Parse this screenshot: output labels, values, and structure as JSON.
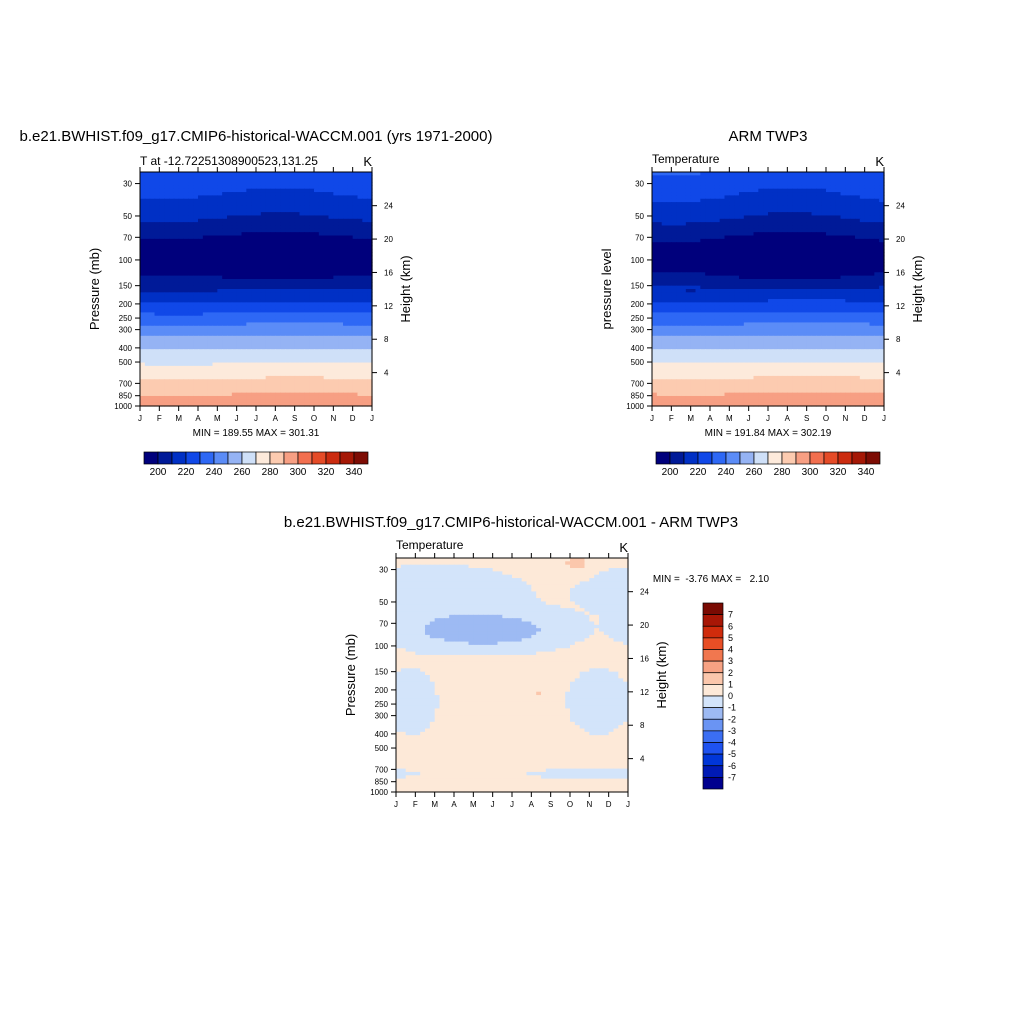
{
  "colors": {
    "abs_scale": [
      "#00007c",
      "#001a98",
      "#0030c5",
      "#1048e8",
      "#2e68f5",
      "#5b8cf7",
      "#95b3f4",
      "#cfe0f8",
      "#fdeadb",
      "#fccbb0",
      "#f79f83",
      "#f26f4f",
      "#e54b27",
      "#cb2b0f",
      "#a51806",
      "#7d0c04"
    ],
    "diff_scale": [
      "#00008e",
      "#001ab5",
      "#0036d8",
      "#1e52f0",
      "#3b6ef3",
      "#6a94f3",
      "#9dbaf3",
      "#d3e4fa",
      "#fde9d8",
      "#fbc7ac",
      "#f7a283",
      "#f1774f",
      "#e84e25",
      "#d02c0c",
      "#a81706",
      "#7a0b03"
    ]
  },
  "chart_data": [
    {
      "type": "heatmap",
      "title": "b.e21.BWHIST.f09_g17.CMIP6-historical-WACCM.001 (yrs 1971-2000)",
      "left_string": "T at -12.72251308900523,131.25",
      "right_string": "K",
      "xlabel": "",
      "ylabel": "Pressure (mb)",
      "ylabel_right": "Height (km)",
      "x_ticks": [
        "J",
        "F",
        "M",
        "A",
        "M",
        "J",
        "J",
        "A",
        "S",
        "O",
        "N",
        "D",
        "J"
      ],
      "y_ticks": [
        "30",
        "50",
        "70",
        "100",
        "150",
        "200",
        "250",
        "300",
        "400",
        "500",
        "700",
        "850",
        "1000"
      ],
      "y_ticks_right": [
        "24",
        "20",
        "16",
        "12",
        "8",
        "4"
      ],
      "ylim_mb": [
        1000,
        25
      ],
      "stats": "MIN = 189.55 MAX = 301.31",
      "min": 189.55,
      "max": 301.31,
      "colorbar_labels": [
        "200",
        "220",
        "240",
        "260",
        "280",
        "300",
        "320",
        "340"
      ],
      "colorbar_range": [
        190,
        350
      ],
      "colorbar_step": 10
    },
    {
      "type": "heatmap",
      "title": "ARM TWP3",
      "left_string": "Temperature",
      "right_string": "K",
      "xlabel": "",
      "ylabel": "pressure level",
      "ylabel_right": "Height (km)",
      "x_ticks": [
        "J",
        "F",
        "M",
        "A",
        "M",
        "J",
        "J",
        "A",
        "S",
        "O",
        "N",
        "D",
        "J"
      ],
      "y_ticks": [
        "30",
        "50",
        "70",
        "100",
        "150",
        "200",
        "250",
        "300",
        "400",
        "500",
        "700",
        "850",
        "1000"
      ],
      "y_ticks_right": [
        "24",
        "20",
        "16",
        "12",
        "8",
        "4"
      ],
      "ylim_mb": [
        1000,
        25
      ],
      "stats": "MIN = 191.84 MAX = 302.19",
      "min": 191.84,
      "max": 302.19,
      "colorbar_labels": [
        "200",
        "220",
        "240",
        "260",
        "280",
        "300",
        "320",
        "340"
      ],
      "colorbar_range": [
        190,
        350
      ],
      "colorbar_step": 10
    },
    {
      "type": "heatmap",
      "title": "b.e21.BWHIST.f09_g17.CMIP6-historical-WACCM.001 - ARM TWP3",
      "left_string": "Temperature",
      "right_string": "K",
      "xlabel": "",
      "ylabel": "Pressure (mb)",
      "ylabel_right": "Height (km)",
      "x_ticks": [
        "J",
        "F",
        "M",
        "A",
        "M",
        "J",
        "J",
        "A",
        "S",
        "O",
        "N",
        "D",
        "J"
      ],
      "y_ticks": [
        "30",
        "50",
        "70",
        "100",
        "150",
        "200",
        "250",
        "300",
        "400",
        "500",
        "700",
        "850",
        "1000"
      ],
      "y_ticks_right": [
        "24",
        "20",
        "16",
        "12",
        "8",
        "4"
      ],
      "ylim_mb": [
        1000,
        25
      ],
      "stats": "MIN =  -3.76 MAX =   2.10",
      "min": -3.76,
      "max": 2.1,
      "colorbar_labels": [
        "7",
        "6",
        "5",
        "4",
        "3",
        "2",
        "1",
        "0",
        "-1",
        "-2",
        "-3",
        "-4",
        "-5",
        "-6",
        "-7"
      ],
      "colorbar_range": [
        -8,
        8
      ],
      "colorbar_step": 1
    }
  ]
}
